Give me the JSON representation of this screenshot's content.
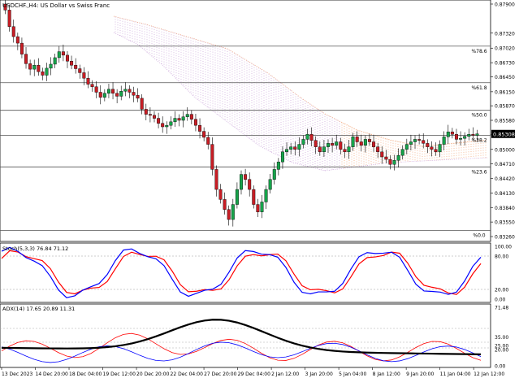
{
  "main_panel": {
    "title": "USDCHF.,H4:  US Dollar vs Swiss Franc",
    "price_axis": [
      "0.87900",
      "0.87320",
      "0.87020",
      "0.86730",
      "0.86450",
      "0.86150",
      "0.85870",
      "0.85580",
      "0.85290",
      "0.85000",
      "0.84710",
      "0.84420",
      "0.84130",
      "0.83840",
      "0.83550",
      "0.83260"
    ],
    "current_price": "0.85308",
    "fib_levels": [
      {
        "label": "%78.6",
        "price": 0.8706
      },
      {
        "label": "%61.8",
        "price": 0.8633
      },
      {
        "label": "%50.0",
        "price": 0.8578
      },
      {
        "label": "%38.2",
        "price": 0.8528
      },
      {
        "label": "%23.6",
        "price": 0.8465
      },
      {
        "label": "%0.0",
        "price": 0.8338
      }
    ],
    "colors": {
      "bull": "#16a34a",
      "bear": "#c81d25",
      "fib": "#555555",
      "cloud_up": "#f0a070",
      "cloud_down": "#c8a0d8"
    }
  },
  "stoch_panel": {
    "title": "Stoch(5,3,3) 76.84 71.12",
    "axis": [
      "100.00",
      "80.00",
      "20.00",
      "0.00"
    ],
    "colors": {
      "main": "#0000ff",
      "signal": "#ff0000"
    }
  },
  "adx_panel": {
    "title": "ADX(14) 17.65 20.89 11.31",
    "axis": [
      "71.48",
      "35.00",
      "25.00",
      "20.00",
      "0.00"
    ],
    "colors": {
      "adx": "#000000",
      "plus_di": "#ff0000",
      "minus_di": "#0000ff"
    }
  },
  "time_axis": [
    "13 Dec 2023",
    "14 Dec 20:00",
    "18 Dec 04:00",
    "19 Dec 12:00",
    "20 Dec 20:00",
    "22 Dec 04:00",
    "27 Dec 20:00",
    "29 Dec 04:00",
    "2 Jan 12:00",
    "3 Jan 20:00",
    "5 Jan 04:00",
    "8 Jan 12:00",
    "9 Jan 20:00",
    "11 Jan 04:00",
    "12 Jan 12:00"
  ]
}
